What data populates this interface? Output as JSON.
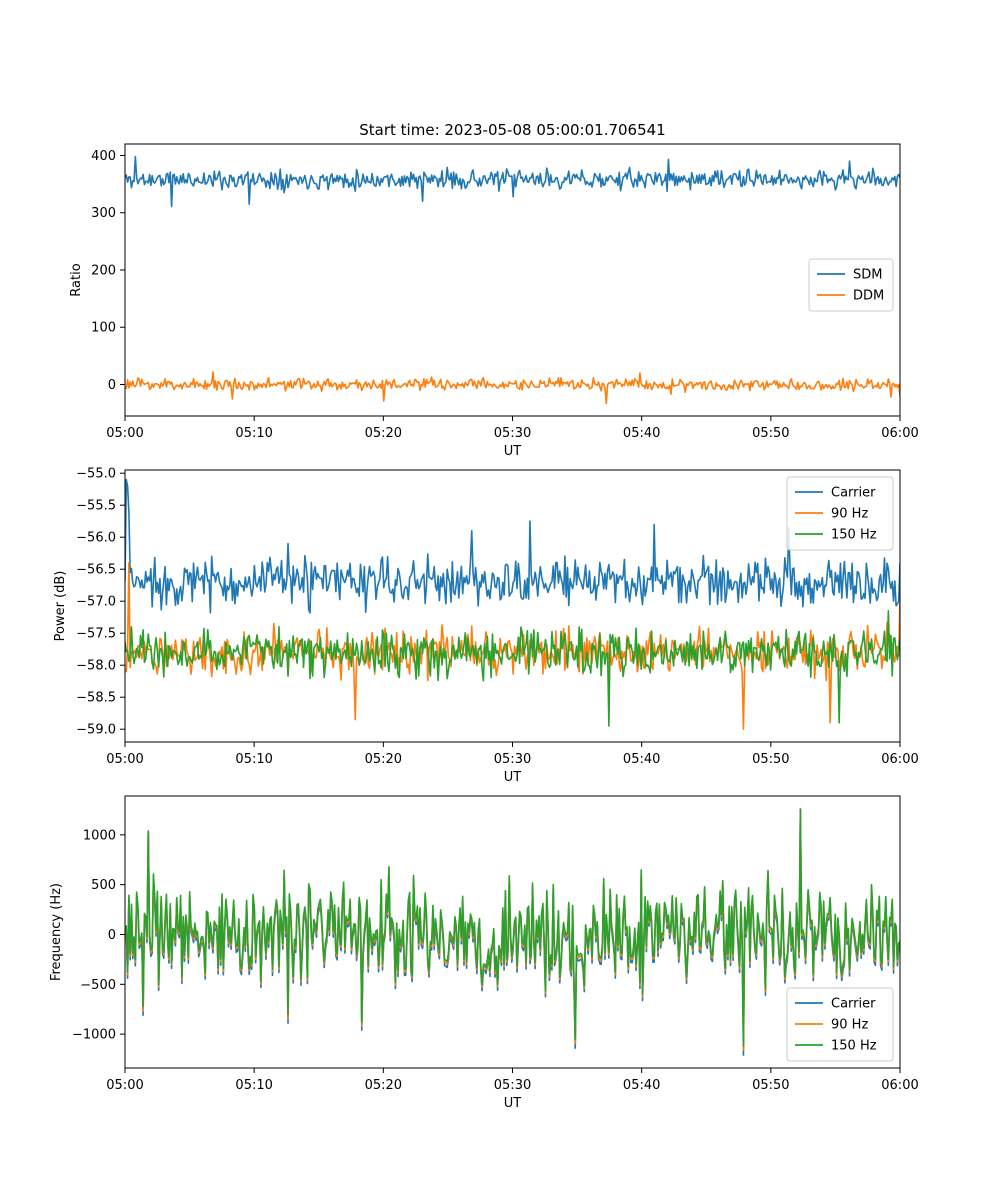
{
  "figure": {
    "title": "Start time: 2023-05-08 05:00:01.706541"
  },
  "colors": {
    "blue": "#1f77b4",
    "orange": "#ff7f0e",
    "green": "#2ca02c"
  },
  "chart_data": [
    {
      "type": "line",
      "title": "Start time: 2023-05-08 05:00:01.706541",
      "xlabel": "UT",
      "ylabel": "Ratio",
      "xlim": [
        "05:00",
        "06:00"
      ],
      "xticks": [
        "05:00",
        "05:10",
        "05:20",
        "05:30",
        "05:40",
        "05:50",
        "06:00"
      ],
      "ylim": [
        -55,
        420
      ],
      "yticks": [
        0,
        100,
        200,
        300,
        400
      ],
      "grid": false,
      "legend": "center-right",
      "series": [
        {
          "name": "SDM",
          "color": "#1f77b4",
          "noise": {
            "seed": 11,
            "mean": 358,
            "amp": 14,
            "spikes": [
              [
                8,
                398
              ],
              [
                96,
                315
              ],
              [
                36,
                311
              ],
              [
                230,
                320
              ],
              [
                300,
                328
              ],
              [
                420,
                393
              ],
              [
                560,
                390
              ],
              [
                120,
                376
              ]
            ]
          },
          "summary": {
            "mean": 358,
            "min": 305,
            "max": 400
          }
        },
        {
          "name": "DDM",
          "color": "#ff7f0e",
          "noise": {
            "seed": 23,
            "mean": 0,
            "amp": 9,
            "spikes": [
              [
                68,
                22
              ],
              [
                83,
                -25
              ],
              [
                200,
                -29
              ],
              [
                372,
                -33
              ],
              [
                398,
                20
              ],
              [
                422,
                -17
              ],
              [
                592,
                -22
              ],
              [
                599,
                -20
              ]
            ]
          },
          "summary": {
            "mean": 0,
            "min": -33,
            "max": 24
          }
        }
      ]
    },
    {
      "type": "line",
      "title": "",
      "xlabel": "UT",
      "ylabel": "Power (dB)",
      "xlim": [
        "05:00",
        "06:00"
      ],
      "xticks": [
        "05:00",
        "05:10",
        "05:20",
        "05:30",
        "05:40",
        "05:50",
        "06:00"
      ],
      "ylim": [
        -59.2,
        -54.95
      ],
      "yticks": [
        -59.0,
        -58.5,
        -58.0,
        -57.5,
        -57.0,
        -56.5,
        -56.0,
        -55.5,
        -55.0
      ],
      "grid": false,
      "legend": "top-right",
      "series": [
        {
          "name": "Carrier",
          "color": "#1f77b4",
          "noise": {
            "seed": 37,
            "mean": -56.7,
            "amp": 0.32,
            "spikes": [
              [
                1,
                -55.1
              ],
              [
                2,
                -55.2
              ],
              [
                3,
                -55.6
              ],
              [
                126,
                -56.1
              ],
              [
                268,
                -55.9
              ],
              [
                313,
                -55.75
              ],
              [
                409,
                -55.8
              ],
              [
                513,
                -55.85
              ],
              [
                599,
                -56.4
              ]
            ]
          },
          "summary": {
            "mean": -56.7,
            "min": -57.7,
            "max": -55.1
          }
        },
        {
          "name": "90 Hz",
          "color": "#ff7f0e",
          "noise": {
            "seed": 51,
            "mean": -57.8,
            "amp": 0.3,
            "spikes": [
              [
                3,
                -56.4
              ],
              [
                178,
                -58.85
              ],
              [
                478,
                -59.0
              ],
              [
                545,
                -58.9
              ],
              [
                599,
                -56.95
              ]
            ]
          },
          "summary": {
            "mean": -57.8,
            "min": -59.0,
            "max": -56.4
          }
        },
        {
          "name": "150 Hz",
          "color": "#2ca02c",
          "noise": {
            "seed": 67,
            "mean": -57.8,
            "amp": 0.3,
            "spikes": [
              [
                5,
                -57.4
              ],
              [
                374,
                -58.95
              ],
              [
                552,
                -58.9
              ],
              [
                590,
                -57.15
              ]
            ]
          },
          "summary": {
            "mean": -57.8,
            "min": -58.95,
            "max": -57.0
          }
        }
      ]
    },
    {
      "type": "line",
      "title": "",
      "xlabel": "UT",
      "ylabel": "Frequency (Hz)",
      "xlim": [
        "05:00",
        "06:00"
      ],
      "xticks": [
        "05:00",
        "05:10",
        "05:20",
        "05:30",
        "05:40",
        "05:50",
        "06:00"
      ],
      "ylim": [
        -1340,
        1390
      ],
      "yticks": [
        -1000,
        -500,
        0,
        500,
        1000
      ],
      "grid": false,
      "legend": "bottom-right",
      "series": [
        {
          "name": "Carrier",
          "color": "#1f77b4",
          "noise": {
            "seed": 83,
            "mean": -40,
            "amp": 430,
            "spikes": [
              [
                14,
                -810
              ],
              [
                126,
                -890
              ],
              [
                183,
                -960
              ],
              [
                348,
                -1140
              ],
              [
                478,
                -1210
              ],
              [
                522,
                1250
              ],
              [
                18,
                1030
              ]
            ]
          },
          "summary": {
            "mean": -40,
            "min": -1210,
            "max": 1250
          }
        },
        {
          "name": "90 Hz",
          "color": "#ff7f0e",
          "noise": {
            "seed": 83,
            "mean": -5,
            "amp": 430,
            "spikes": [
              [
                14,
                -770
              ],
              [
                126,
                -850
              ],
              [
                183,
                -920
              ],
              [
                348,
                -1090
              ],
              [
                478,
                -1160
              ],
              [
                522,
                1255
              ],
              [
                18,
                1035
              ]
            ]
          },
          "summary": {
            "mean": -5,
            "min": -1160,
            "max": 1255
          }
        },
        {
          "name": "150 Hz",
          "color": "#2ca02c",
          "noise": {
            "seed": 83,
            "mean": 20,
            "amp": 430,
            "spikes": [
              [
                14,
                -720
              ],
              [
                126,
                -800
              ],
              [
                183,
                -880
              ],
              [
                348,
                -1050
              ],
              [
                478,
                -1120
              ],
              [
                522,
                1260
              ],
              [
                18,
                1040
              ]
            ]
          },
          "summary": {
            "mean": 20,
            "min": -1120,
            "max": 1260
          }
        }
      ]
    }
  ]
}
